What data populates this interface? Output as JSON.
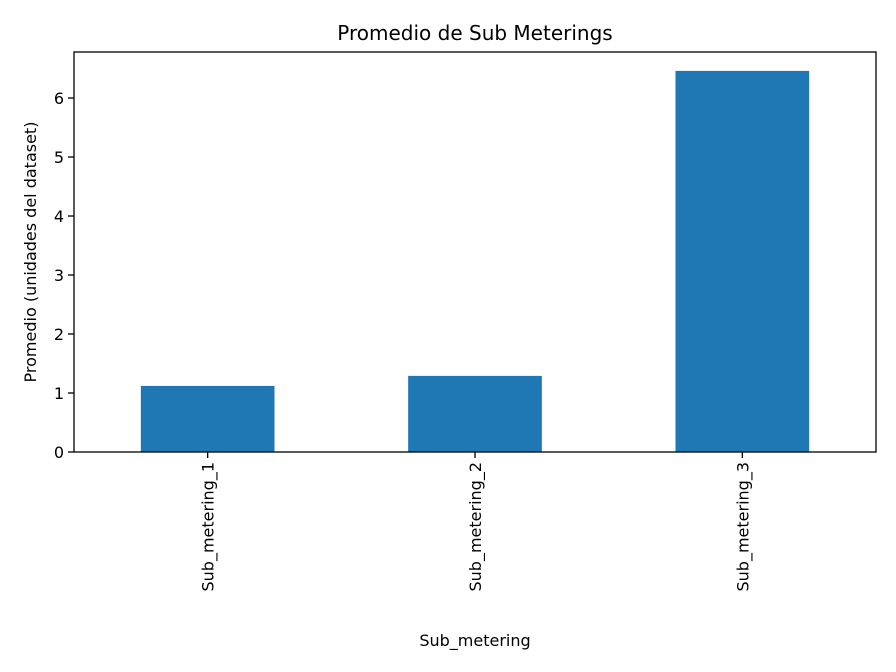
{
  "chart_data": {
    "type": "bar",
    "title": "Promedio de Sub Meterings",
    "xlabel": "Sub_metering",
    "ylabel": "Promedio (unidades del dataset)",
    "categories": [
      "Sub_metering_1",
      "Sub_metering_2",
      "Sub_metering_3"
    ],
    "values": [
      1.12,
      1.29,
      6.46
    ],
    "ylim": [
      0,
      6.78
    ],
    "yticks": [
      0,
      1,
      2,
      3,
      4,
      5,
      6
    ],
    "grid": false,
    "bar_color": "#1f77b4",
    "axis_color": "#000000"
  }
}
